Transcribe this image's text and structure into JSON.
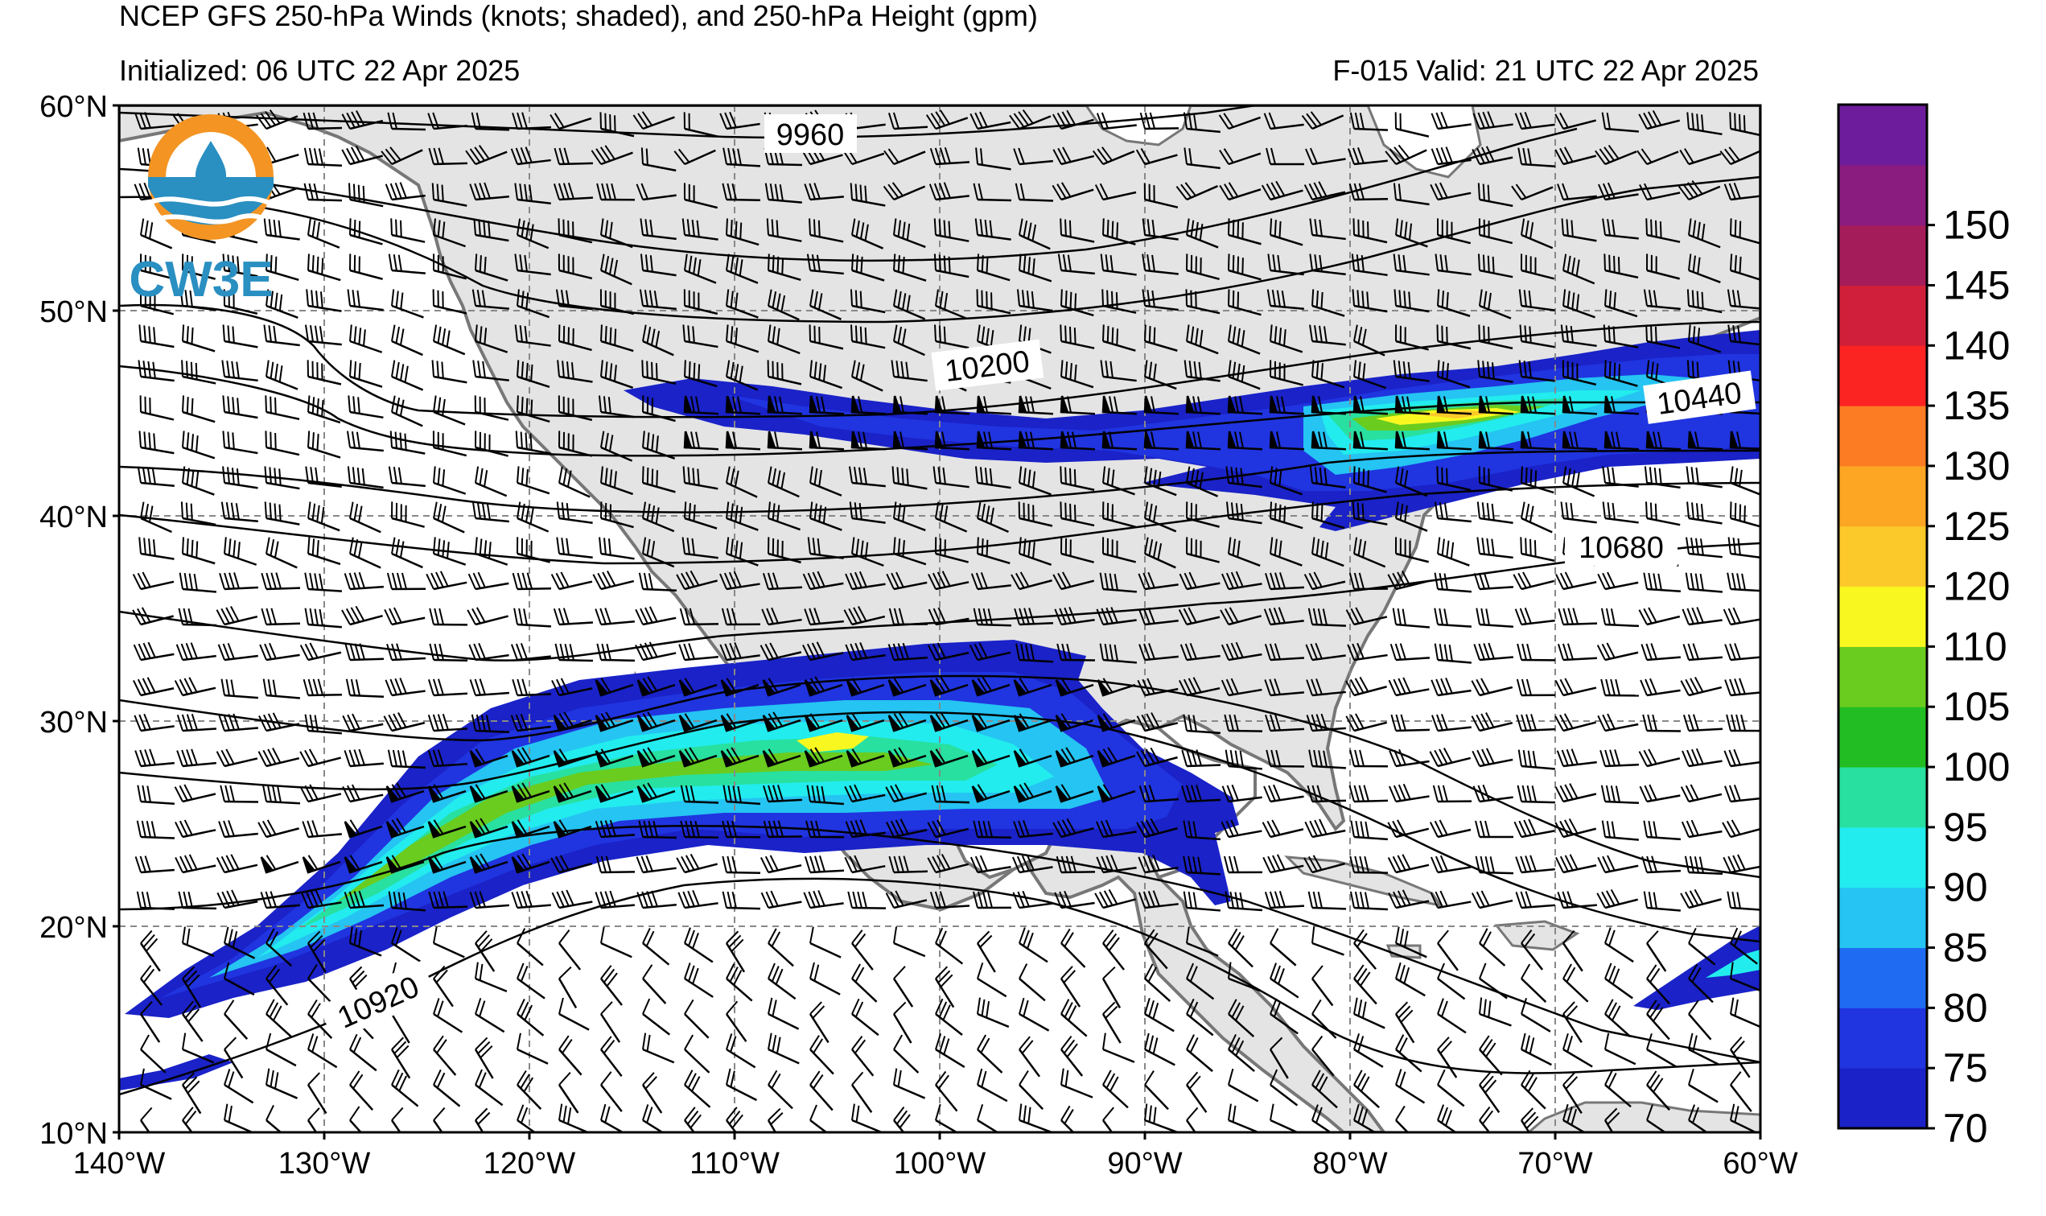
{
  "title": {
    "line1": "NCEP GFS 250-hPa Winds (knots; shaded), and 250-hPa Height (gpm)",
    "initialized": "Initialized: 06 UTC 22 Apr 2025",
    "valid": "F-015  Valid: 21 UTC 22 Apr 2025"
  },
  "logo": {
    "text": "CW3E"
  },
  "axes": {
    "lat_labels": [
      "60°N",
      "50°N",
      "40°N",
      "30°N",
      "20°N",
      "10°N"
    ],
    "lon_labels": [
      "140°W",
      "130°W",
      "120°W",
      "110°W",
      "100°W",
      "90°W",
      "80°W",
      "70°W",
      "60°W"
    ]
  },
  "contour_labels": [
    "9960",
    "10200",
    "10440",
    "10680",
    "10920"
  ],
  "colorbar": {
    "labels": [
      "70",
      "75",
      "80",
      "85",
      "90",
      "95",
      "100",
      "105",
      "110",
      "120",
      "125",
      "130",
      "135",
      "140",
      "145",
      "150"
    ],
    "colors": [
      "#1a22c8",
      "#2034e0",
      "#1f6cf2",
      "#25c4f2",
      "#22ecee",
      "#28e0a0",
      "#22bd22",
      "#6acc1f",
      "#f8f820",
      "#fcc92a",
      "#fca623",
      "#fb7c22",
      "#fc2323",
      "#d01f3a",
      "#a51c5a",
      "#8a1c80",
      "#6d1d9c"
    ]
  },
  "colors": {
    "land": "#e4e4e4",
    "ocean": "#ffffff",
    "coast": "#777777",
    "grid": "#888888"
  }
}
